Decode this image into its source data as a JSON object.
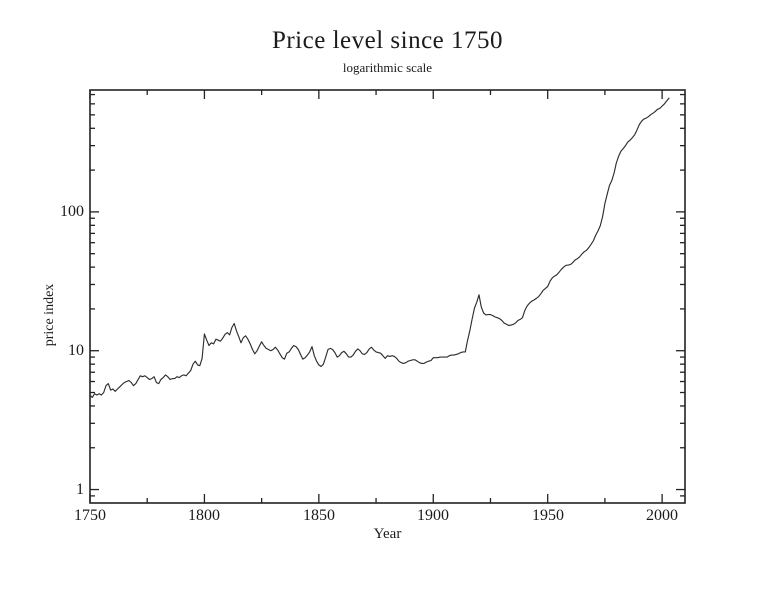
{
  "page": {
    "background": "#ffffff",
    "text_color": "#1b1b1b"
  },
  "chart_data": {
    "type": "line",
    "title": "Price level since 1750",
    "subtitle": "logarithmic scale",
    "xlabel": "Year",
    "ylabel": "price index",
    "y_scale": "log",
    "grid": false,
    "legend": "none",
    "axis_color": "#222222",
    "line_color": "#2e2e2e",
    "xlim": [
      1750,
      2010
    ],
    "ylim": [
      0.8,
      755
    ],
    "x_major_ticks": [
      1750,
      1800,
      1850,
      1900,
      1950,
      2000
    ],
    "x_tick_labels": [
      "1750",
      "1800",
      "1850",
      "1900",
      "1950",
      "2000"
    ],
    "x_minor_ticks": [
      1775,
      1825,
      1875,
      1925,
      1975
    ],
    "y_major_ticks": [
      1,
      10,
      100
    ],
    "y_tick_labels": [
      "1",
      "10",
      "100"
    ],
    "y_minor_ticks": [
      0.9,
      2,
      3,
      4,
      5,
      6,
      7,
      8,
      9,
      20,
      30,
      40,
      50,
      60,
      70,
      80,
      90,
      200,
      300,
      400,
      500,
      600,
      700
    ],
    "series": [
      {
        "name": "price index",
        "points": [
          [
            1750,
            4.8
          ],
          [
            1751,
            4.6
          ],
          [
            1752,
            4.9
          ],
          [
            1753,
            4.8
          ],
          [
            1754,
            4.9
          ],
          [
            1755,
            4.8
          ],
          [
            1756,
            5.0
          ],
          [
            1757,
            5.6
          ],
          [
            1758,
            5.8
          ],
          [
            1759,
            5.2
          ],
          [
            1760,
            5.3
          ],
          [
            1761,
            5.1
          ],
          [
            1762,
            5.3
          ],
          [
            1763,
            5.5
          ],
          [
            1764,
            5.7
          ],
          [
            1765,
            5.9
          ],
          [
            1766,
            6.0
          ],
          [
            1767,
            6.1
          ],
          [
            1768,
            5.9
          ],
          [
            1769,
            5.6
          ],
          [
            1770,
            5.8
          ],
          [
            1771,
            6.2
          ],
          [
            1772,
            6.6
          ],
          [
            1773,
            6.5
          ],
          [
            1774,
            6.6
          ],
          [
            1775,
            6.4
          ],
          [
            1776,
            6.2
          ],
          [
            1777,
            6.3
          ],
          [
            1778,
            6.5
          ],
          [
            1779,
            5.9
          ],
          [
            1780,
            5.8
          ],
          [
            1781,
            6.2
          ],
          [
            1782,
            6.4
          ],
          [
            1783,
            6.7
          ],
          [
            1784,
            6.5
          ],
          [
            1785,
            6.2
          ],
          [
            1786,
            6.3
          ],
          [
            1787,
            6.3
          ],
          [
            1788,
            6.5
          ],
          [
            1789,
            6.4
          ],
          [
            1790,
            6.6
          ],
          [
            1791,
            6.7
          ],
          [
            1792,
            6.6
          ],
          [
            1793,
            6.9
          ],
          [
            1794,
            7.2
          ],
          [
            1795,
            8.0
          ],
          [
            1796,
            8.4
          ],
          [
            1797,
            7.9
          ],
          [
            1798,
            7.8
          ],
          [
            1799,
            8.8
          ],
          [
            1800,
            13.2
          ],
          [
            1801,
            11.9
          ],
          [
            1802,
            10.9
          ],
          [
            1803,
            11.4
          ],
          [
            1804,
            11.2
          ],
          [
            1805,
            12.1
          ],
          [
            1806,
            11.9
          ],
          [
            1807,
            11.7
          ],
          [
            1808,
            12.3
          ],
          [
            1809,
            13.1
          ],
          [
            1810,
            13.5
          ],
          [
            1811,
            13.0
          ],
          [
            1812,
            14.7
          ],
          [
            1813,
            15.7
          ],
          [
            1814,
            13.9
          ],
          [
            1815,
            12.6
          ],
          [
            1816,
            11.4
          ],
          [
            1817,
            12.4
          ],
          [
            1818,
            12.8
          ],
          [
            1819,
            12.1
          ],
          [
            1820,
            11.2
          ],
          [
            1821,
            10.2
          ],
          [
            1822,
            9.5
          ],
          [
            1823,
            10.0
          ],
          [
            1824,
            10.8
          ],
          [
            1825,
            11.6
          ],
          [
            1826,
            10.9
          ],
          [
            1827,
            10.4
          ],
          [
            1828,
            10.2
          ],
          [
            1829,
            10.0
          ],
          [
            1830,
            10.2
          ],
          [
            1831,
            10.6
          ],
          [
            1832,
            10.1
          ],
          [
            1833,
            9.5
          ],
          [
            1834,
            8.9
          ],
          [
            1835,
            8.7
          ],
          [
            1836,
            9.6
          ],
          [
            1837,
            9.8
          ],
          [
            1838,
            10.4
          ],
          [
            1839,
            10.9
          ],
          [
            1840,
            10.7
          ],
          [
            1841,
            10.2
          ],
          [
            1842,
            9.4
          ],
          [
            1843,
            8.7
          ],
          [
            1844,
            8.9
          ],
          [
            1845,
            9.3
          ],
          [
            1846,
            9.8
          ],
          [
            1847,
            10.7
          ],
          [
            1848,
            9.2
          ],
          [
            1849,
            8.4
          ],
          [
            1850,
            7.9
          ],
          [
            1851,
            7.7
          ],
          [
            1852,
            8.0
          ],
          [
            1853,
            9.0
          ],
          [
            1854,
            10.2
          ],
          [
            1855,
            10.4
          ],
          [
            1856,
            10.2
          ],
          [
            1857,
            9.7
          ],
          [
            1858,
            9.0
          ],
          [
            1859,
            9.2
          ],
          [
            1860,
            9.7
          ],
          [
            1861,
            9.9
          ],
          [
            1862,
            9.5
          ],
          [
            1863,
            9.0
          ],
          [
            1864,
            9.0
          ],
          [
            1865,
            9.3
          ],
          [
            1866,
            9.9
          ],
          [
            1867,
            10.3
          ],
          [
            1868,
            10.0
          ],
          [
            1869,
            9.5
          ],
          [
            1870,
            9.4
          ],
          [
            1871,
            9.7
          ],
          [
            1872,
            10.3
          ],
          [
            1873,
            10.6
          ],
          [
            1874,
            10.1
          ],
          [
            1875,
            9.8
          ],
          [
            1876,
            9.7
          ],
          [
            1877,
            9.6
          ],
          [
            1878,
            9.2
          ],
          [
            1879,
            8.8
          ],
          [
            1880,
            9.2
          ],
          [
            1881,
            9.1
          ],
          [
            1882,
            9.2
          ],
          [
            1883,
            9.1
          ],
          [
            1884,
            8.8
          ],
          [
            1885,
            8.4
          ],
          [
            1886,
            8.2
          ],
          [
            1887,
            8.1
          ],
          [
            1888,
            8.2
          ],
          [
            1889,
            8.4
          ],
          [
            1890,
            8.5
          ],
          [
            1891,
            8.6
          ],
          [
            1892,
            8.6
          ],
          [
            1893,
            8.4
          ],
          [
            1894,
            8.2
          ],
          [
            1895,
            8.1
          ],
          [
            1896,
            8.1
          ],
          [
            1897,
            8.3
          ],
          [
            1898,
            8.4
          ],
          [
            1899,
            8.5
          ],
          [
            1900,
            8.9
          ],
          [
            1901,
            8.9
          ],
          [
            1902,
            8.9
          ],
          [
            1903,
            9.0
          ],
          [
            1904,
            9.0
          ],
          [
            1905,
            9.0
          ],
          [
            1906,
            9.0
          ],
          [
            1907,
            9.2
          ],
          [
            1908,
            9.3
          ],
          [
            1909,
            9.3
          ],
          [
            1910,
            9.4
          ],
          [
            1911,
            9.5
          ],
          [
            1912,
            9.7
          ],
          [
            1913,
            9.8
          ],
          [
            1914,
            9.8
          ],
          [
            1915,
            11.9
          ],
          [
            1916,
            14.0
          ],
          [
            1917,
            17.0
          ],
          [
            1918,
            20.3
          ],
          [
            1919,
            22.4
          ],
          [
            1920,
            25.3
          ],
          [
            1921,
            20.6
          ],
          [
            1922,
            18.7
          ],
          [
            1923,
            18.1
          ],
          [
            1924,
            18.2
          ],
          [
            1925,
            18.2
          ],
          [
            1926,
            17.9
          ],
          [
            1927,
            17.5
          ],
          [
            1928,
            17.3
          ],
          [
            1929,
            17.0
          ],
          [
            1930,
            16.5
          ],
          [
            1931,
            15.8
          ],
          [
            1932,
            15.5
          ],
          [
            1933,
            15.2
          ],
          [
            1934,
            15.3
          ],
          [
            1935,
            15.5
          ],
          [
            1936,
            15.9
          ],
          [
            1937,
            16.5
          ],
          [
            1938,
            16.8
          ],
          [
            1939,
            17.3
          ],
          [
            1940,
            19.5
          ],
          [
            1941,
            21.0
          ],
          [
            1942,
            22.0
          ],
          [
            1943,
            22.7
          ],
          [
            1944,
            23.2
          ],
          [
            1945,
            23.8
          ],
          [
            1946,
            24.5
          ],
          [
            1947,
            25.7
          ],
          [
            1948,
            27.2
          ],
          [
            1949,
            28.1
          ],
          [
            1950,
            29.0
          ],
          [
            1951,
            31.6
          ],
          [
            1952,
            33.5
          ],
          [
            1953,
            34.5
          ],
          [
            1954,
            35.2
          ],
          [
            1955,
            36.8
          ],
          [
            1956,
            38.6
          ],
          [
            1957,
            40.0
          ],
          [
            1958,
            41.2
          ],
          [
            1959,
            41.4
          ],
          [
            1960,
            41.8
          ],
          [
            1961,
            43.3
          ],
          [
            1962,
            45.1
          ],
          [
            1963,
            46.0
          ],
          [
            1964,
            47.5
          ],
          [
            1965,
            49.8
          ],
          [
            1966,
            51.7
          ],
          [
            1967,
            53.0
          ],
          [
            1968,
            55.5
          ],
          [
            1969,
            58.5
          ],
          [
            1970,
            62.2
          ],
          [
            1971,
            68.1
          ],
          [
            1972,
            73.0
          ],
          [
            1973,
            79.7
          ],
          [
            1974,
            92.5
          ],
          [
            1975,
            114.9
          ],
          [
            1976,
            134.0
          ],
          [
            1977,
            155.2
          ],
          [
            1978,
            168.1
          ],
          [
            1979,
            190.6
          ],
          [
            1980,
            224.9
          ],
          [
            1981,
            251.6
          ],
          [
            1982,
            273.2
          ],
          [
            1983,
            285.8
          ],
          [
            1984,
            300.0
          ],
          [
            1985,
            318.2
          ],
          [
            1986,
            329.1
          ],
          [
            1987,
            342.8
          ],
          [
            1988,
            359.6
          ],
          [
            1989,
            387.6
          ],
          [
            1990,
            424.2
          ],
          [
            1991,
            449.1
          ],
          [
            1992,
            465.9
          ],
          [
            1993,
            473.3
          ],
          [
            1994,
            484.7
          ],
          [
            1995,
            501.5
          ],
          [
            1996,
            513.6
          ],
          [
            1997,
            529.8
          ],
          [
            1998,
            548.0
          ],
          [
            1999,
            556.4
          ],
          [
            2000,
            578.0
          ],
          [
            2001,
            600.0
          ],
          [
            2002,
            630.0
          ],
          [
            2003,
            660.0
          ]
        ]
      }
    ]
  }
}
